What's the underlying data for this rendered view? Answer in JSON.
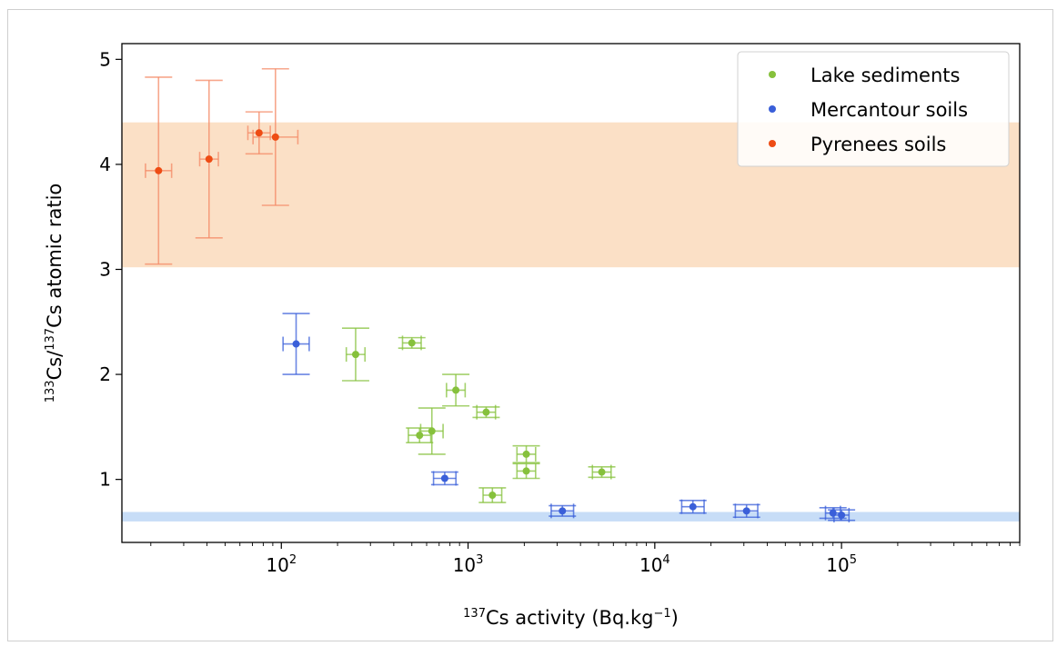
{
  "chart_data": {
    "type": "scatter",
    "xscale": "log",
    "xlim": [
      14,
      900000
    ],
    "ylim": [
      0.4,
      5.15
    ],
    "xlabel": {
      "pre": "137",
      "main": "Cs activity (Bq.kg",
      "unit_sup": "−1",
      "post": ")"
    },
    "ylabel": {
      "sup1": "133",
      "part1": "Cs/",
      "sup2": "137",
      "part2": "Cs atomic ratio"
    },
    "x_ticks": [
      {
        "value": 100,
        "base": "10",
        "exp": "2"
      },
      {
        "value": 1000,
        "base": "10",
        "exp": "3"
      },
      {
        "value": 10000,
        "base": "10",
        "exp": "4"
      },
      {
        "value": 100000,
        "base": "10",
        "exp": "5"
      }
    ],
    "y_ticks": [
      1,
      2,
      3,
      4,
      5
    ],
    "legend_position": "top-right",
    "bands": [
      {
        "y0": 3.02,
        "y1": 4.4,
        "color": "#fbe0c6"
      },
      {
        "y0": 0.6,
        "y1": 0.69,
        "color": "#c7ddf7"
      }
    ],
    "series": [
      {
        "name": "Lake sediments",
        "color": "#86c13c",
        "points": [
          {
            "x": 250,
            "y": 2.19,
            "xerr": 0.05,
            "yerr": 0.25
          },
          {
            "x": 500,
            "y": 2.3,
            "xerr": 0.05,
            "yerr": 0.05
          },
          {
            "x": 860,
            "y": 1.85,
            "xerr": 0.05,
            "yerr": 0.15
          },
          {
            "x": 1250,
            "y": 1.64,
            "xerr": 0.05,
            "yerr": 0.05
          },
          {
            "x": 550,
            "y": 1.42,
            "xerr": 0.06,
            "yerr": 0.07
          },
          {
            "x": 640,
            "y": 1.46,
            "xerr": 0.06,
            "yerr": 0.22
          },
          {
            "x": 2050,
            "y": 1.24,
            "xerr": 0.05,
            "yerr": 0.08
          },
          {
            "x": 2050,
            "y": 1.08,
            "xerr": 0.05,
            "yerr": 0.07
          },
          {
            "x": 5200,
            "y": 1.07,
            "xerr": 0.05,
            "yerr": 0.05
          },
          {
            "x": 1350,
            "y": 0.85,
            "xerr": 0.05,
            "yerr": 0.07
          }
        ]
      },
      {
        "name": "Mercantour soils",
        "color": "#3a5fd9",
        "points": [
          {
            "x": 120,
            "y": 2.29,
            "xerr": 0.07,
            "yerr": 0.29
          },
          {
            "x": 750,
            "y": 1.01,
            "xerr": 0.06,
            "yerr": 0.06
          },
          {
            "x": 3200,
            "y": 0.7,
            "xerr": 0.06,
            "yerr": 0.05
          },
          {
            "x": 16000,
            "y": 0.74,
            "xerr": 0.06,
            "yerr": 0.06
          },
          {
            "x": 31000,
            "y": 0.7,
            "xerr": 0.06,
            "yerr": 0.06
          },
          {
            "x": 90000,
            "y": 0.68,
            "xerr": 0.04,
            "yerr": 0.05
          },
          {
            "x": 100000,
            "y": 0.66,
            "xerr": 0.04,
            "yerr": 0.05
          }
        ]
      },
      {
        "name": "Pyrenees soils",
        "color": "#ee4c14",
        "errcolor": "#f48a66",
        "points": [
          {
            "x": 22,
            "y": 3.94,
            "xerr": 0.07,
            "yerr": 0.89
          },
          {
            "x": 41,
            "y": 4.05,
            "xerr": 0.05,
            "yerr": 0.75
          },
          {
            "x": 76,
            "y": 4.3,
            "xerr": 0.06,
            "yerr": 0.2
          },
          {
            "x": 93,
            "y": 4.26,
            "xerr": 0.12,
            "yerr": 0.65
          }
        ]
      }
    ]
  }
}
